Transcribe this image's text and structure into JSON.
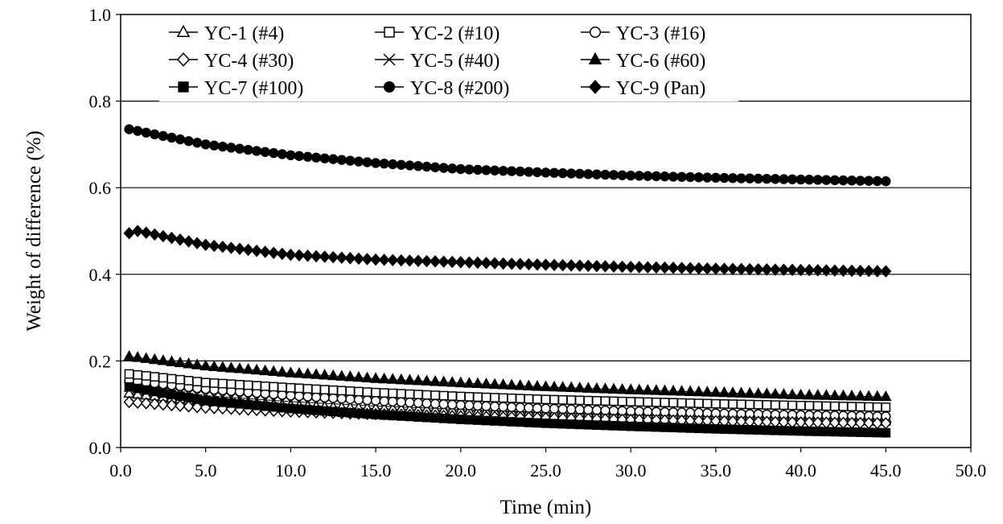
{
  "chart_data": {
    "type": "scatter",
    "xlabel": "Time (min)",
    "ylabel": "Weight of difference (%)",
    "xlim": [
      0,
      50
    ],
    "ylim": [
      0,
      1.0
    ],
    "x_ticks": [
      "0.0",
      "5.0",
      "10.0",
      "15.0",
      "20.0",
      "25.0",
      "30.0",
      "35.0",
      "40.0",
      "45.0",
      "50.0"
    ],
    "y_ticks": [
      "0.0",
      "0.2",
      "0.4",
      "0.6",
      "0.8",
      "1.0"
    ],
    "grid": "horizontal",
    "legend_position": "top-left",
    "sampling": "points every 0.5 min from 0.5 to 45.0 min",
    "series": [
      {
        "name": "YC-1 (#4)",
        "marker": "triangle-open",
        "x": [
          0.5,
          5,
          10,
          15,
          20,
          25,
          30,
          35,
          40,
          45
        ],
        "y": [
          0.125,
          0.105,
          0.096,
          0.09,
          0.085,
          0.08,
          0.077,
          0.074,
          0.071,
          0.068
        ]
      },
      {
        "name": "YC-2 (#10)",
        "marker": "square-open",
        "x": [
          0.5,
          5,
          10,
          15,
          20,
          25,
          30,
          35,
          40,
          45
        ],
        "y": [
          0.17,
          0.15,
          0.138,
          0.127,
          0.118,
          0.111,
          0.106,
          0.101,
          0.097,
          0.093
        ]
      },
      {
        "name": "YC-3 (#16)",
        "marker": "circle-open",
        "x": [
          0.5,
          5,
          10,
          15,
          20,
          25,
          30,
          35,
          40,
          45
        ],
        "y": [
          0.155,
          0.135,
          0.12,
          0.108,
          0.098,
          0.09,
          0.084,
          0.079,
          0.075,
          0.072
        ]
      },
      {
        "name": "YC-4 (#30)",
        "marker": "diamond-open",
        "x": [
          0.5,
          5,
          10,
          15,
          20,
          25,
          30,
          35,
          40,
          45
        ],
        "y": [
          0.105,
          0.092,
          0.083,
          0.077,
          0.072,
          0.068,
          0.064,
          0.061,
          0.058,
          0.056
        ]
      },
      {
        "name": "YC-5 (#40)",
        "marker": "cross",
        "x": [
          0.5,
          5,
          10,
          15,
          20,
          25,
          30,
          35,
          40,
          45
        ],
        "y": [
          0.14,
          0.12,
          0.106,
          0.096,
          0.088,
          0.081,
          0.075,
          0.07,
          0.066,
          0.062
        ]
      },
      {
        "name": "YC-6 (#60)",
        "marker": "triangle-filled",
        "x": [
          0.5,
          5,
          10,
          15,
          20,
          25,
          30,
          35,
          40,
          45
        ],
        "y": [
          0.21,
          0.188,
          0.172,
          0.159,
          0.149,
          0.14,
          0.133,
          0.127,
          0.121,
          0.117
        ]
      },
      {
        "name": "YC-7 (#100)",
        "marker": "square-filled",
        "x": [
          0.5,
          5,
          10,
          15,
          20,
          25,
          30,
          35,
          40,
          45
        ],
        "y": [
          0.14,
          0.108,
          0.09,
          0.076,
          0.065,
          0.056,
          0.049,
          0.043,
          0.038,
          0.034
        ]
      },
      {
        "name": "YC-8 (#200)",
        "marker": "circle-filled",
        "x": [
          0.5,
          5,
          10,
          15,
          20,
          25,
          30,
          35,
          40,
          45
        ],
        "y": [
          0.735,
          0.7,
          0.675,
          0.657,
          0.643,
          0.635,
          0.628,
          0.623,
          0.619,
          0.615
        ]
      },
      {
        "name": "YC-9 (Pan)",
        "marker": "diamond-filled",
        "x": [
          0.5,
          1,
          5,
          10,
          15,
          20,
          25,
          30,
          35,
          40,
          45
        ],
        "y": [
          0.495,
          0.5,
          0.468,
          0.445,
          0.434,
          0.428,
          0.422,
          0.417,
          0.413,
          0.41,
          0.407
        ]
      }
    ]
  }
}
